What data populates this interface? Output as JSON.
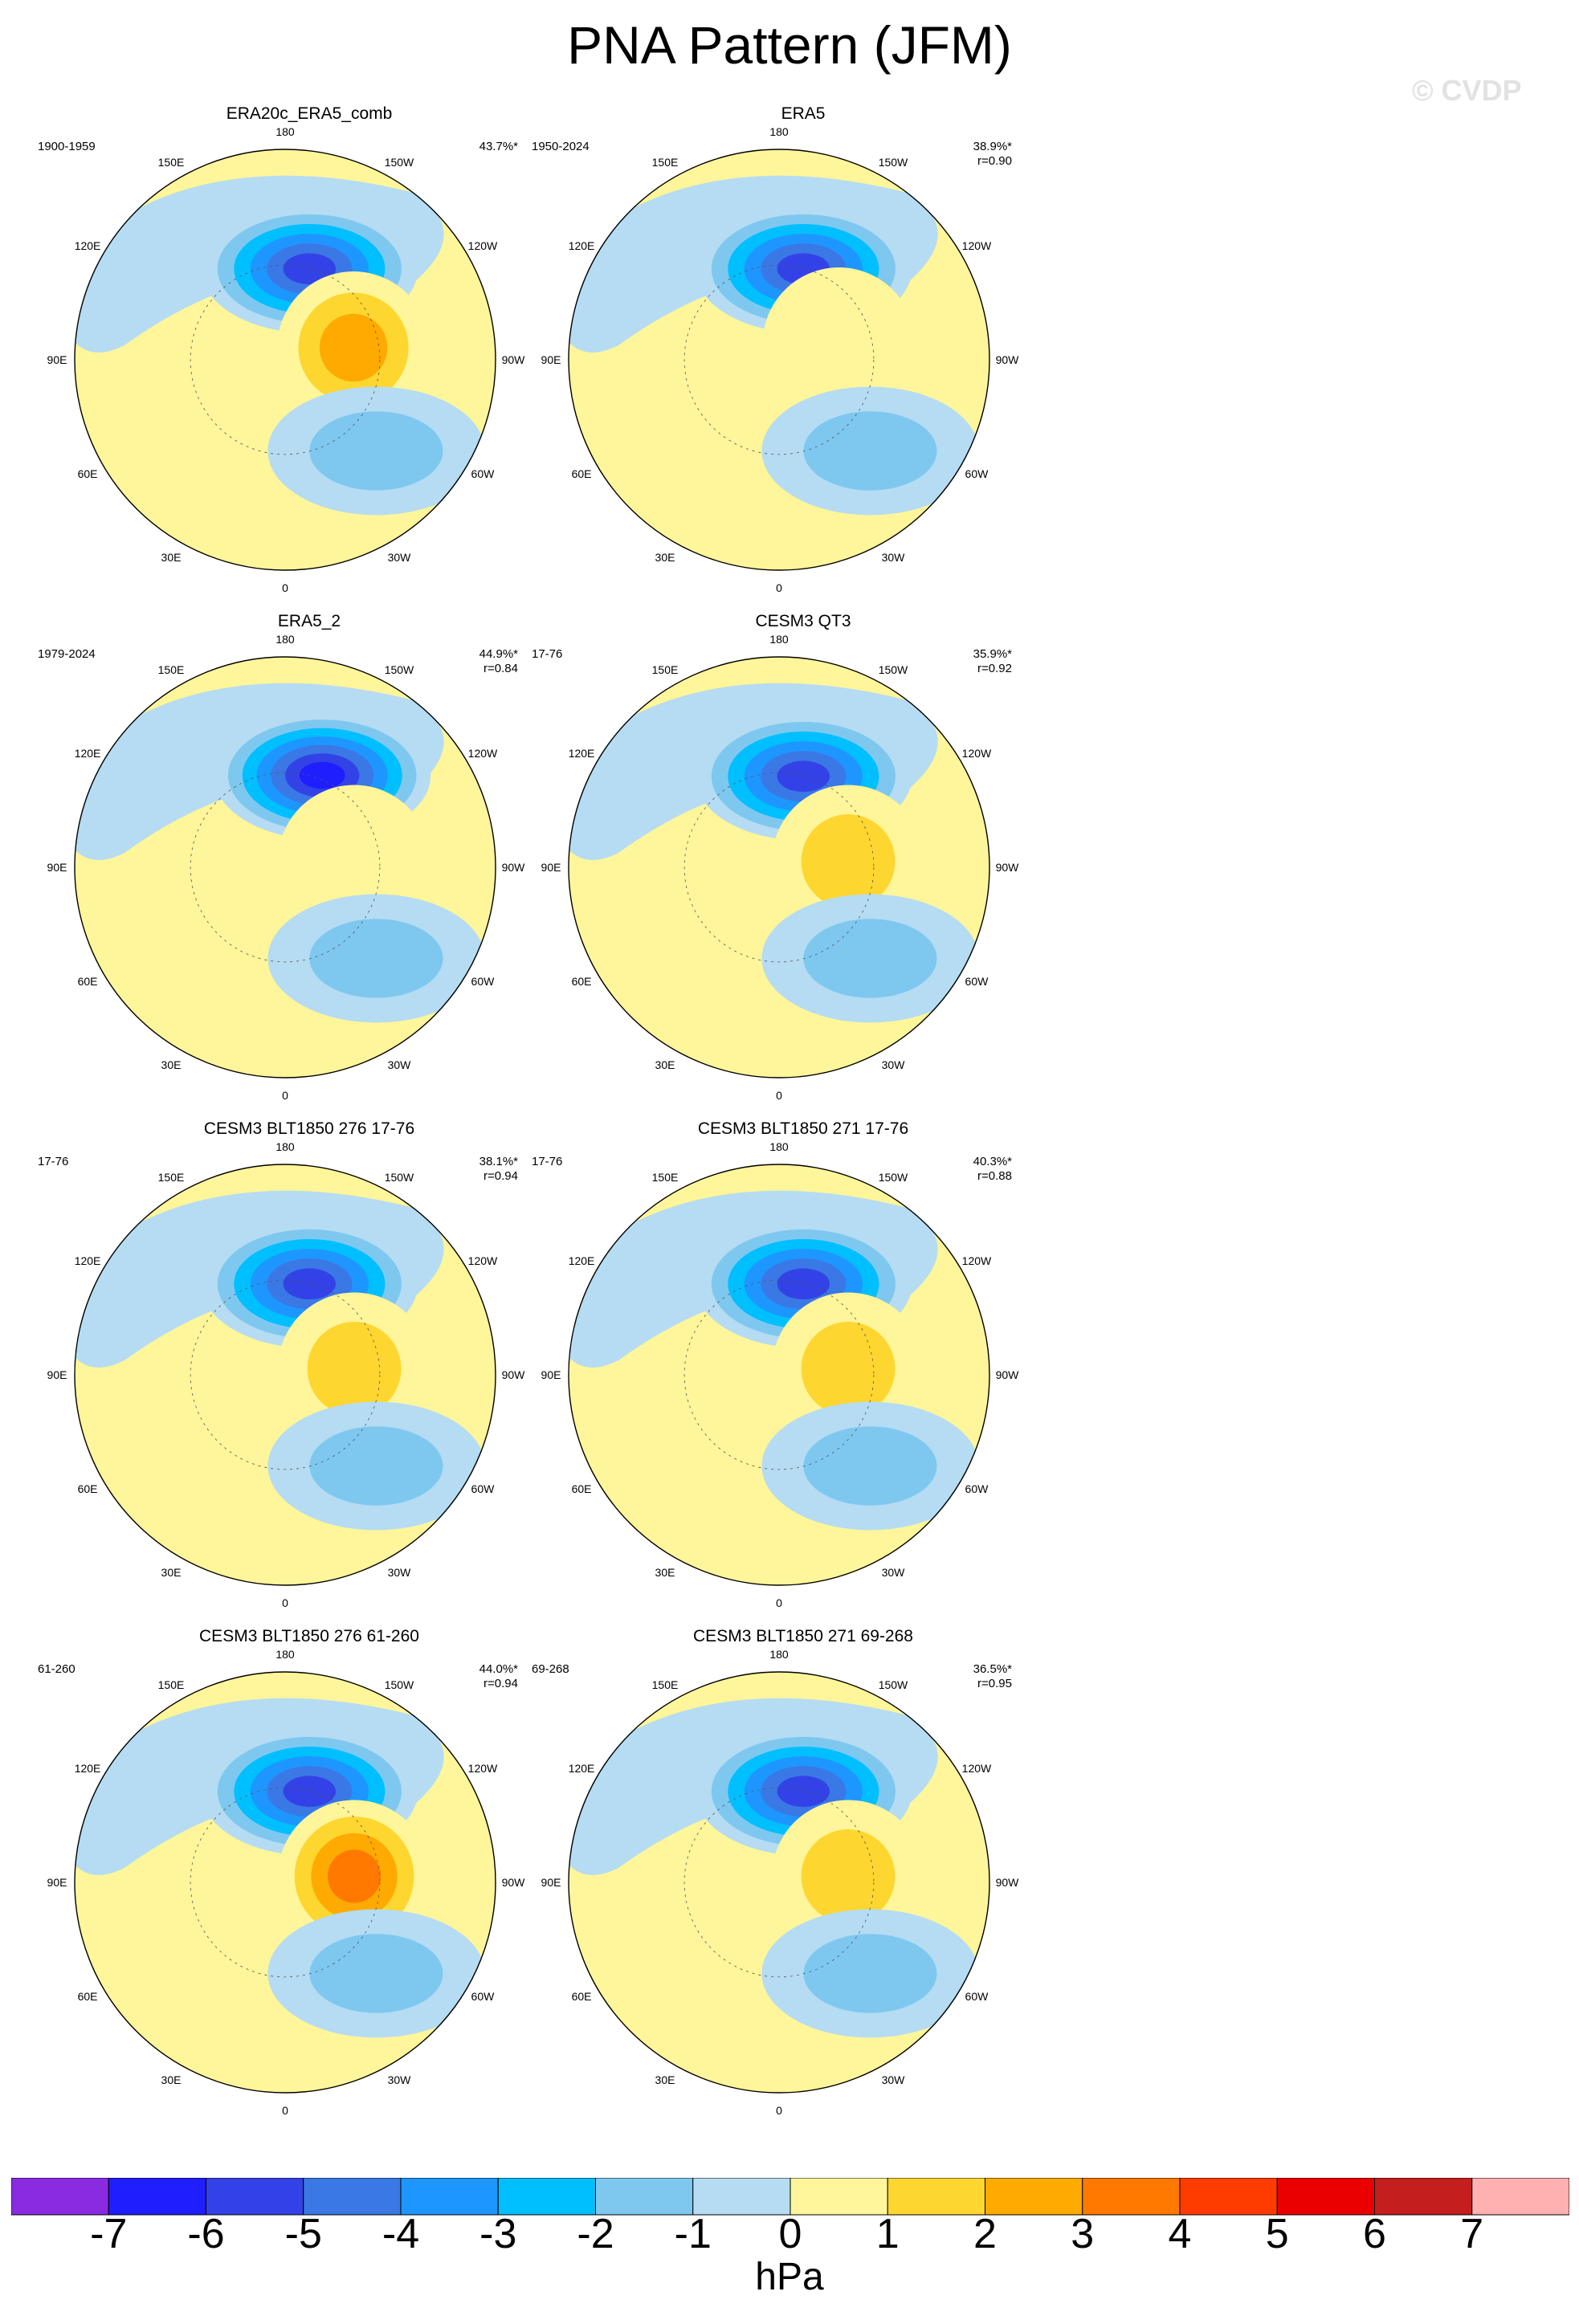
{
  "title": "PNA Pattern (JFM)",
  "copyright": "© CVDP",
  "colorbar": {
    "units": "hPa",
    "ticks": [
      "-7",
      "-6",
      "-5",
      "-4",
      "-3",
      "-2",
      "-1",
      "0",
      "1",
      "2",
      "3",
      "4",
      "5",
      "6",
      "7"
    ],
    "colors": [
      "#8a2be2",
      "#1e1eff",
      "#3342e6",
      "#3a78e6",
      "#1e96ff",
      "#00bfff",
      "#7ec8f0",
      "#b5dcf2",
      "#fff59a",
      "#fed630",
      "#ffaa00",
      "#ff7800",
      "#ff3c00",
      "#eb0000",
      "#c41e1e",
      "#ffb0b0"
    ]
  },
  "lon_labels": [
    "180",
    "150E",
    "120E",
    "90E",
    "60E",
    "30E",
    "0",
    "30W",
    "60W",
    "90W",
    "120W",
    "150W"
  ],
  "chart_data": [
    {
      "type": "heatmap",
      "projection": "polar-stereographic-NH",
      "title": "ERA20c_ERA5_comb",
      "period": "1900-1959",
      "pct_variance": "43.7%*",
      "pattern_corr": "",
      "features": [
        {
          "kind": "low",
          "center_deg": [
            -165,
            52
          ],
          "peak_hPa": -6
        },
        {
          "kind": "high",
          "center_deg": [
            -100,
            62
          ],
          "peak_hPa": 3
        },
        {
          "kind": "low",
          "center_deg": [
            -45,
            38
          ],
          "peak_hPa": -2
        }
      ]
    },
    {
      "type": "heatmap",
      "projection": "polar-stereographic-NH",
      "title": "ERA5",
      "period": "1950-2024",
      "pct_variance": "38.9%*",
      "pattern_corr": "r=0.90",
      "features": [
        {
          "kind": "low",
          "center_deg": [
            -165,
            52
          ],
          "peak_hPa": -6
        },
        {
          "kind": "high",
          "center_deg": [
            -105,
            65
          ],
          "peak_hPa": 1
        },
        {
          "kind": "low",
          "center_deg": [
            -45,
            38
          ],
          "peak_hPa": -2
        }
      ]
    },
    {
      "type": "heatmap",
      "projection": "polar-stereographic-NH",
      "title": "ERA5_2",
      "period": "1979-2024",
      "pct_variance": "44.9%*",
      "pattern_corr": "r=0.84",
      "features": [
        {
          "kind": "low",
          "center_deg": [
            -158,
            50
          ],
          "peak_hPa": -7
        },
        {
          "kind": "high",
          "center_deg": [
            -95,
            62
          ],
          "peak_hPa": 1
        },
        {
          "kind": "low",
          "center_deg": [
            -45,
            38
          ],
          "peak_hPa": -2
        }
      ]
    },
    {
      "type": "heatmap",
      "projection": "polar-stereographic-NH",
      "title": "CESM3 QT3",
      "period": "17-76",
      "pct_variance": "35.9%*",
      "pattern_corr": "r=0.92",
      "features": [
        {
          "kind": "low",
          "center_deg": [
            -165,
            52
          ],
          "peak_hPa": -6
        },
        {
          "kind": "high",
          "center_deg": [
            -95,
            62
          ],
          "peak_hPa": 2
        },
        {
          "kind": "low",
          "center_deg": [
            -45,
            38
          ],
          "peak_hPa": -2
        }
      ]
    },
    {
      "type": "heatmap",
      "projection": "polar-stereographic-NH",
      "title": "CESM3 BLT1850 276 17-76",
      "period": "17-76",
      "pct_variance": "38.1%*",
      "pattern_corr": "r=0.94",
      "features": [
        {
          "kind": "low",
          "center_deg": [
            -165,
            52
          ],
          "peak_hPa": -6
        },
        {
          "kind": "high",
          "center_deg": [
            -95,
            62
          ],
          "peak_hPa": 2
        },
        {
          "kind": "low",
          "center_deg": [
            -45,
            38
          ],
          "peak_hPa": -2
        }
      ]
    },
    {
      "type": "heatmap",
      "projection": "polar-stereographic-NH",
      "title": "CESM3 BLT1850 271 17-76",
      "period": "17-76",
      "pct_variance": "40.3%*",
      "pattern_corr": "r=0.88",
      "features": [
        {
          "kind": "low",
          "center_deg": [
            -165,
            52
          ],
          "peak_hPa": -6
        },
        {
          "kind": "high",
          "center_deg": [
            -95,
            62
          ],
          "peak_hPa": 2
        },
        {
          "kind": "low",
          "center_deg": [
            -45,
            38
          ],
          "peak_hPa": -2
        }
      ]
    },
    {
      "type": "heatmap",
      "projection": "polar-stereographic-NH",
      "title": "CESM3 BLT1850 276 61-260",
      "period": "61-260",
      "pct_variance": "44.0%*",
      "pattern_corr": "r=0.94",
      "features": [
        {
          "kind": "low",
          "center_deg": [
            -165,
            52
          ],
          "peak_hPa": -6
        },
        {
          "kind": "high",
          "center_deg": [
            -95,
            62
          ],
          "peak_hPa": 4
        },
        {
          "kind": "low",
          "center_deg": [
            -45,
            38
          ],
          "peak_hPa": -2
        }
      ]
    },
    {
      "type": "heatmap",
      "projection": "polar-stereographic-NH",
      "title": "CESM3 BLT1850 271 69-268",
      "period": "69-268",
      "pct_variance": "36.5%*",
      "pattern_corr": "r=0.95",
      "features": [
        {
          "kind": "low",
          "center_deg": [
            -165,
            52
          ],
          "peak_hPa": -6
        },
        {
          "kind": "high",
          "center_deg": [
            -95,
            62
          ],
          "peak_hPa": 2
        },
        {
          "kind": "low",
          "center_deg": [
            -45,
            38
          ],
          "peak_hPa": -2
        }
      ]
    }
  ]
}
